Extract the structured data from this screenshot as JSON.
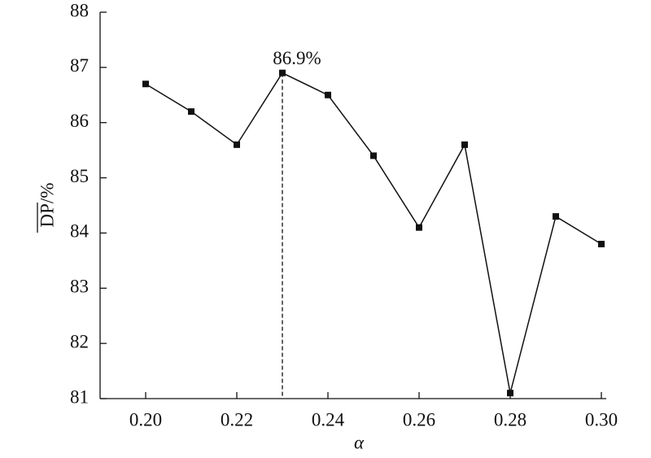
{
  "chart_data": {
    "type": "line",
    "xlabel": "α",
    "ylabel": "DP/%",
    "x": [
      0.2,
      0.21,
      0.22,
      0.23,
      0.24,
      0.25,
      0.26,
      0.27,
      0.28,
      0.29,
      0.3
    ],
    "values": [
      86.7,
      86.2,
      85.6,
      86.9,
      86.5,
      85.4,
      84.1,
      85.6,
      81.1,
      84.3,
      83.8
    ],
    "color": "#111111",
    "xlim": [
      0.19,
      0.3
    ],
    "xticks": [
      {
        "value": 0.2,
        "label": "0.20"
      },
      {
        "value": 0.22,
        "label": "0.22"
      },
      {
        "value": 0.24,
        "label": "0.24"
      },
      {
        "value": 0.26,
        "label": "0.26"
      },
      {
        "value": 0.28,
        "label": "0.28"
      },
      {
        "value": 0.3,
        "label": "0.30"
      }
    ],
    "ylim": [
      81,
      88
    ],
    "yticks": [
      81,
      82,
      83,
      84,
      85,
      86,
      87,
      88
    ],
    "annotation": {
      "text": "86.9%",
      "x": 0.23,
      "y": 86.9
    }
  }
}
